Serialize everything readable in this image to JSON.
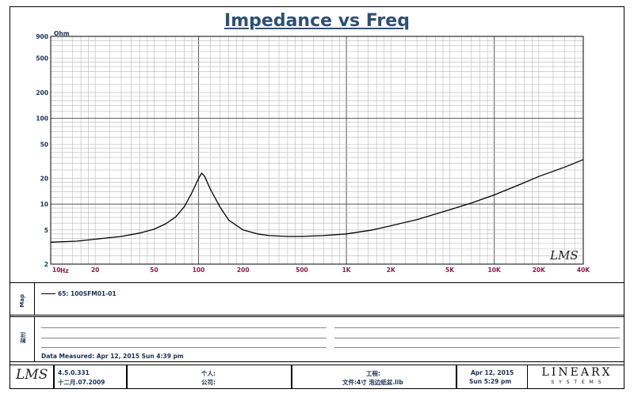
{
  "chart_data": {
    "type": "line",
    "title": "Impedance vs Freq",
    "y_unit": "Ohm",
    "x_unit": "Hz",
    "x_scale": "log",
    "y_scale": "log",
    "xlim": [
      10,
      40000
    ],
    "ylim": [
      2,
      900
    ],
    "x_ticks": [
      "10",
      "20",
      "50",
      "100",
      "200",
      "500",
      "1K",
      "2K",
      "5K",
      "10K",
      "20K",
      "40K"
    ],
    "x_tick_values": [
      10,
      20,
      50,
      100,
      200,
      500,
      1000,
      2000,
      5000,
      10000,
      20000,
      40000
    ],
    "y_ticks": [
      "900",
      "500",
      "200",
      "100",
      "50",
      "20",
      "10",
      "5",
      "2"
    ],
    "y_tick_values": [
      900,
      500,
      200,
      100,
      50,
      20,
      10,
      5,
      2
    ],
    "grid": true,
    "series": [
      {
        "name": "65: 100SFM01-01",
        "color": "#000000",
        "x": [
          10,
          15,
          20,
          30,
          40,
          50,
          60,
          70,
          80,
          90,
          100,
          105,
          110,
          120,
          140,
          160,
          200,
          250,
          300,
          400,
          500,
          700,
          1000,
          1500,
          2000,
          3000,
          5000,
          7000,
          10000,
          15000,
          20000,
          30000,
          40000
        ],
        "y": [
          3.6,
          3.7,
          3.9,
          4.2,
          4.6,
          5.1,
          5.9,
          7.1,
          9.3,
          13.5,
          20,
          23,
          21,
          15,
          9.2,
          6.5,
          5.0,
          4.5,
          4.3,
          4.2,
          4.2,
          4.3,
          4.5,
          5.0,
          5.6,
          6.6,
          8.6,
          10.3,
          12.8,
          17,
          21,
          27,
          33
        ]
      }
    ]
  },
  "legend": {
    "entry": "65: 100SFM01-01",
    "side_label": "Map"
  },
  "notes": {
    "side_label": "附注",
    "measured": "Data Measured: Apr 12, 2015  Sun  4:39 pm"
  },
  "footer": {
    "logo": "LMS",
    "version": "4.5.0.331",
    "version_date": "十二月.07.2009",
    "person_label": "个人:",
    "company_label": "公司:",
    "project_label": "工程:",
    "file_label": "文件:4寸 泡边纸盆.lib",
    "date": "Apr 12, 2015",
    "time": "Sun  5:29 pm",
    "brand_top": "LINEARX",
    "brand_bottom": "S Y S T E M S"
  },
  "watermark": "LMS"
}
